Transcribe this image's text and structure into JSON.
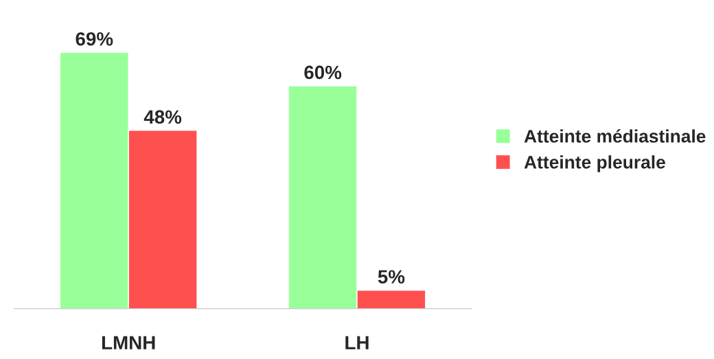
{
  "chart_data": {
    "type": "bar",
    "categories": [
      "LMNH",
      "LH"
    ],
    "series": [
      {
        "name": "Atteinte médiastinale",
        "color": "#99ff99",
        "values": [
          69,
          60
        ],
        "value_labels": [
          "69%",
          "60%"
        ]
      },
      {
        "name": "Atteinte pleurale",
        "color": "#ff5050",
        "values": [
          48,
          5
        ],
        "value_labels": [
          "48%",
          "5%"
        ]
      }
    ],
    "legend": "right",
    "grid": false
  }
}
